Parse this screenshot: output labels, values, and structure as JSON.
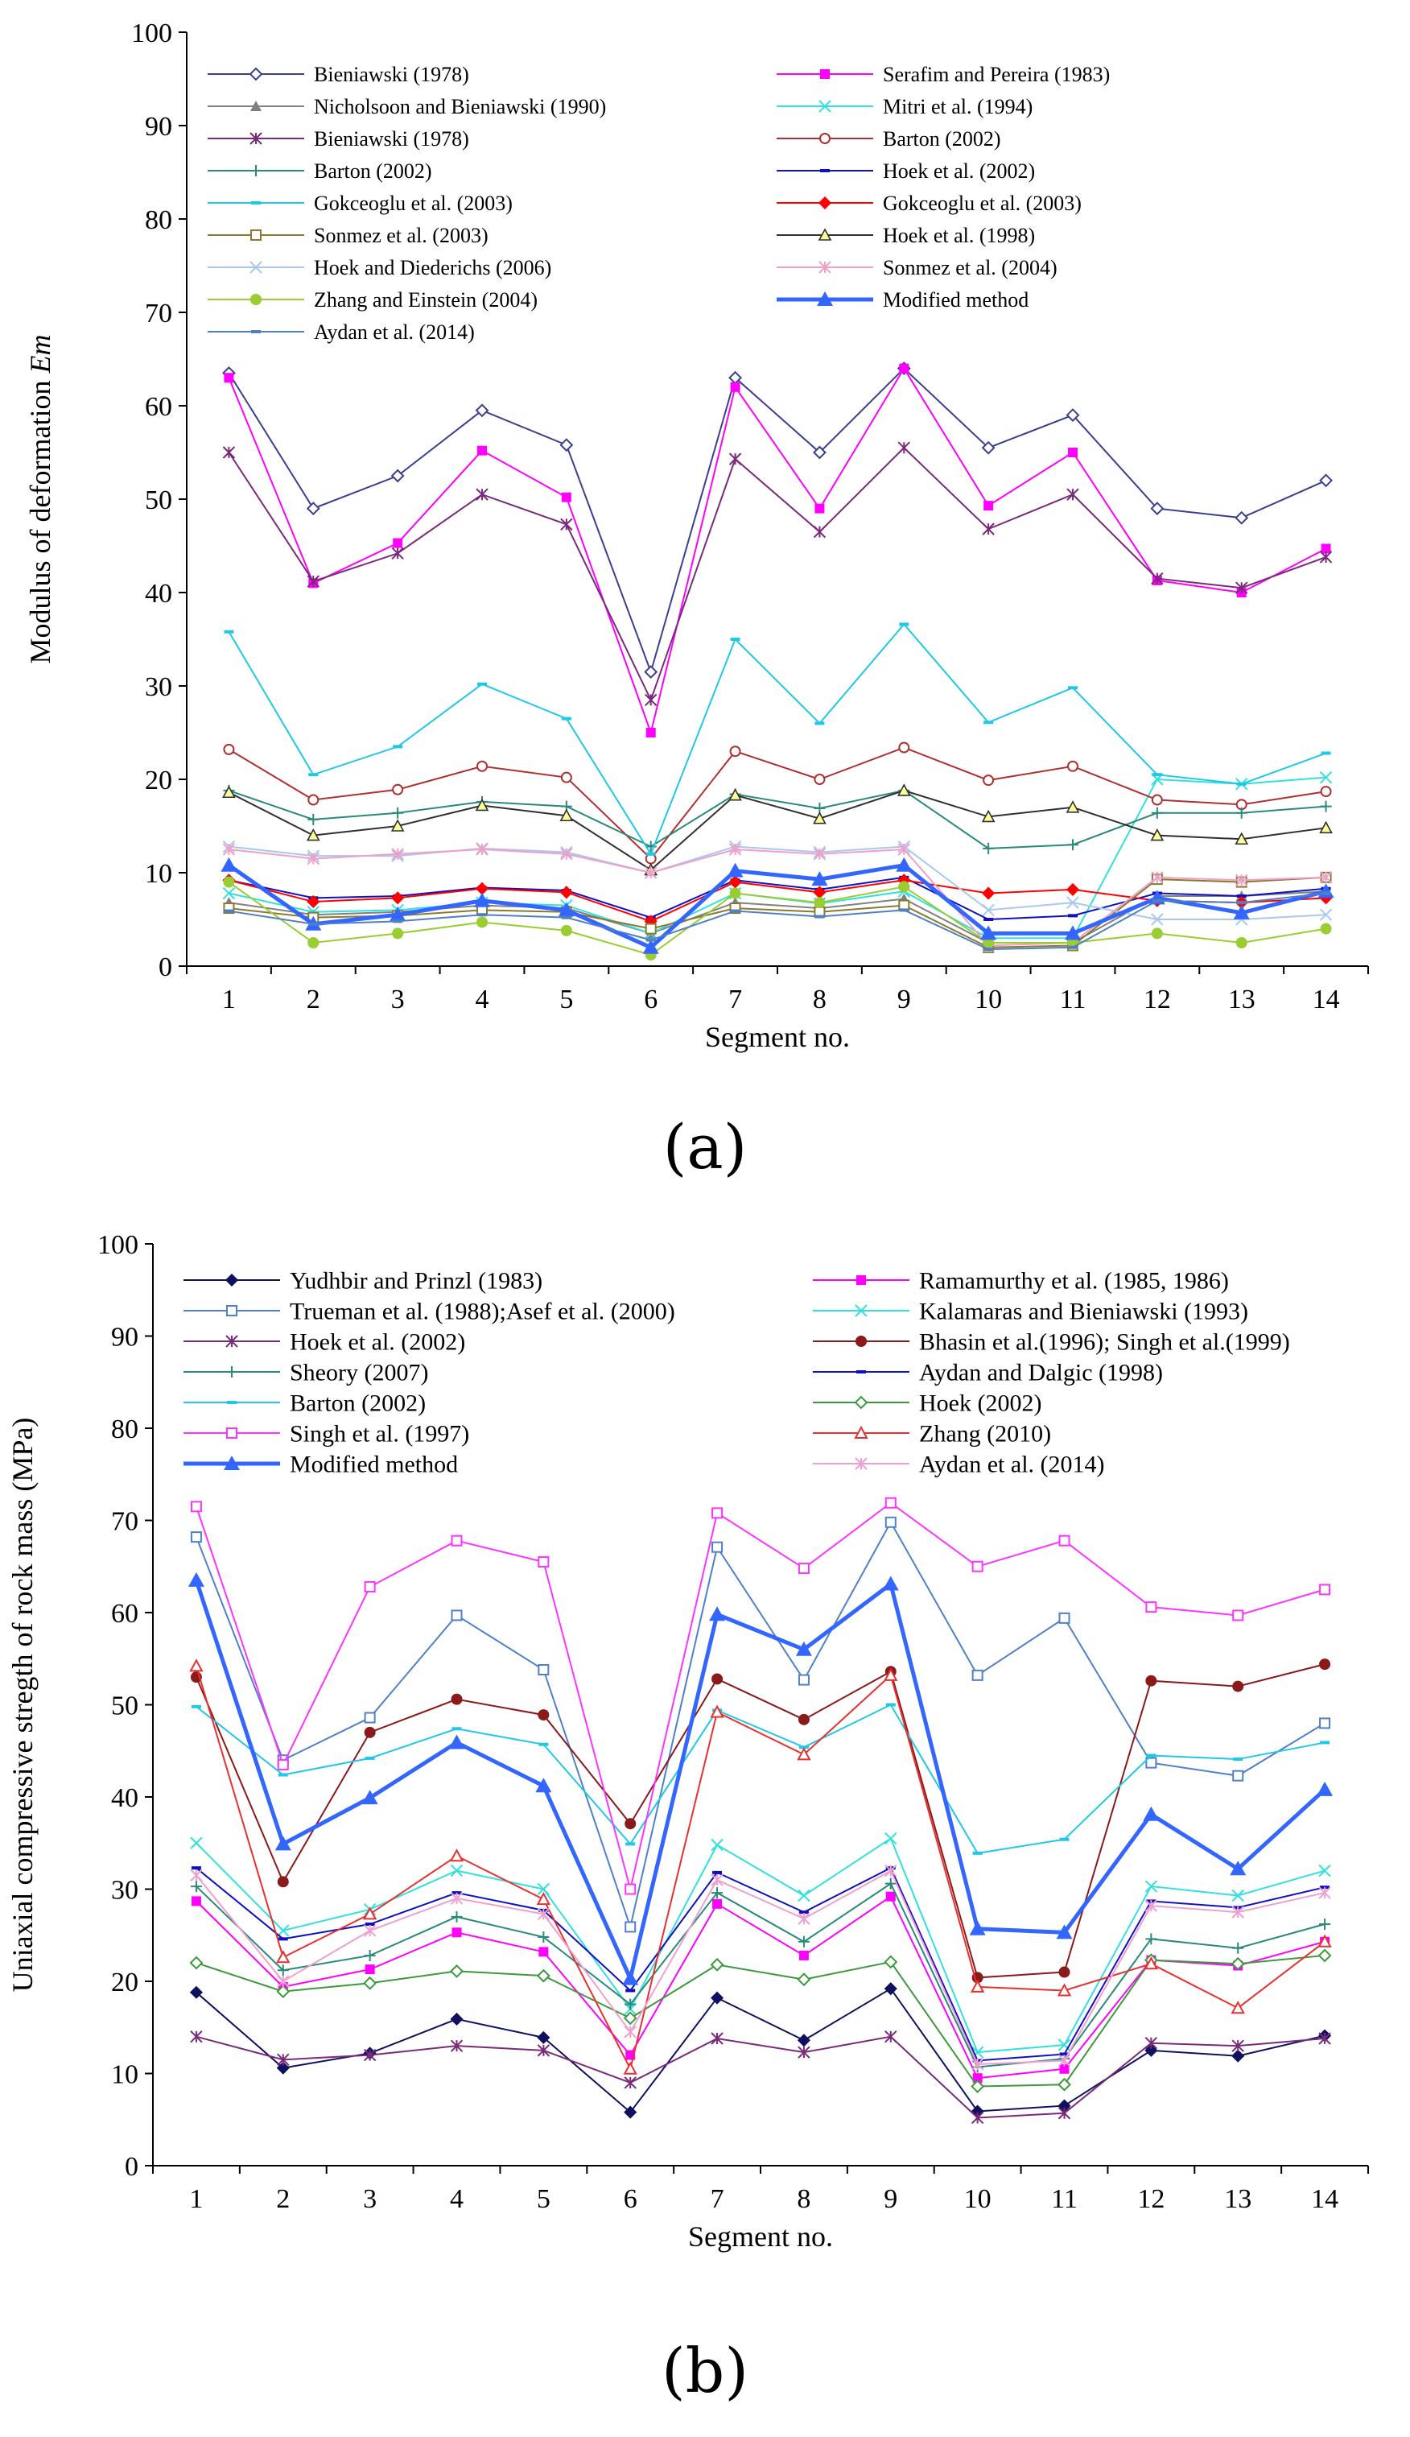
{
  "panel_labels": [
    "(a)",
    "(b)"
  ],
  "chart_data": [
    {
      "type": "line",
      "panel": "(a)",
      "xlabel": "Segment no.",
      "ylabel": "Modulus of deformation ",
      "ylabel_italic": "Em",
      "ylim": [
        0,
        100
      ],
      "yticks": [
        0,
        10,
        20,
        30,
        40,
        50,
        60,
        70,
        80,
        90,
        100
      ],
      "x": [
        1,
        2,
        3,
        4,
        5,
        6,
        7,
        8,
        9,
        10,
        11,
        12,
        13,
        14
      ],
      "series": [
        {
          "name": "Bieniawski (1978)",
          "color": "#3a3f8f",
          "marker": "diamond-open",
          "values": [
            63.5,
            49,
            52.5,
            59.5,
            55.8,
            31.5,
            63,
            55,
            64,
            55.5,
            59,
            49,
            48,
            52
          ]
        },
        {
          "name": "Serafim and Pereira (1983)",
          "color": "#ff00ff",
          "marker": "square-filled",
          "values": [
            63,
            41,
            45.3,
            55.2,
            50.2,
            25,
            62,
            49,
            64,
            49.3,
            55,
            41.3,
            40,
            44.7
          ]
        },
        {
          "name": "Nicholsoon and Bieniawski (1990)",
          "color": "#808080",
          "marker": "triangle-filled",
          "values": [
            6.8,
            5.5,
            5.8,
            6.5,
            6.2,
            3.5,
            6.8,
            6.2,
            7.2,
            2.5,
            2.5,
            7.5,
            7.5,
            8
          ]
        },
        {
          "name": "Mitri et al. (1994)",
          "color": "#33e0e0",
          "marker": "x",
          "values": [
            7.8,
            5.8,
            6,
            6.8,
            6.5,
            3.5,
            7.8,
            6.7,
            8,
            3,
            3,
            20,
            19.5,
            20.2
          ]
        },
        {
          "name": "Bieniawski (1978)",
          "color": "#7a2a7a",
          "marker": "asterisk",
          "values": [
            55,
            41.2,
            44.2,
            50.5,
            47.3,
            28.5,
            54.3,
            46.5,
            55.5,
            46.8,
            50.5,
            41.5,
            40.5,
            43.8
          ]
        },
        {
          "name": "Barton (2002)",
          "color": "#b03030",
          "marker": "circle-open",
          "values": [
            23.2,
            17.8,
            18.9,
            21.4,
            20.2,
            11.5,
            23,
            20,
            23.4,
            19.9,
            21.4,
            17.8,
            17.3,
            18.7
          ]
        },
        {
          "name": "Barton (2002)",
          "color": "#2a8a7a",
          "marker": "plus",
          "values": [
            18.8,
            15.7,
            16.4,
            17.6,
            17.1,
            12.8,
            18.4,
            16.9,
            18.8,
            12.6,
            13,
            16.4,
            16.4,
            17.1
          ]
        },
        {
          "name": "Hoek et al. (2002)",
          "color": "#1010c0",
          "marker": "dash",
          "values": [
            9.2,
            7.3,
            7.5,
            8.4,
            8.1,
            5.2,
            9.2,
            8.2,
            9.5,
            5,
            5.4,
            7.8,
            7.5,
            8.3
          ]
        },
        {
          "name": "Gokceoglu et al. (2003)",
          "color": "#20c8e8",
          "marker": "dash",
          "values": [
            35.8,
            20.5,
            23.5,
            30.2,
            26.5,
            12,
            35,
            26,
            36.6,
            26.1,
            29.8,
            20.5,
            19.5,
            22.8
          ]
        },
        {
          "name": "Gokceoglu et al. (2003)",
          "color": "#ff0000",
          "marker": "diamond-filled",
          "values": [
            9.2,
            6.9,
            7.3,
            8.3,
            7.9,
            4.8,
            9,
            7.9,
            9.2,
            7.8,
            8.2,
            7,
            6.8,
            7.3
          ]
        },
        {
          "name": "Sonmez et al. (2003)",
          "color": "#8a7a30",
          "marker": "square-open",
          "values": [
            6.2,
            5.2,
            5.4,
            6,
            5.8,
            4,
            6.2,
            5.8,
            6.5,
            2,
            2.2,
            9.3,
            9,
            9.5
          ]
        },
        {
          "name": "Hoek et al. (1998)",
          "color": "#303030",
          "marker": "triangle-yellow",
          "values": [
            18.6,
            14,
            15,
            17.2,
            16.1,
            10.3,
            18.3,
            15.8,
            18.8,
            16,
            17,
            14,
            13.6,
            14.8
          ]
        },
        {
          "name": "Hoek and Diederichs (2006)",
          "color": "#a8c8f0",
          "marker": "x",
          "values": [
            12.8,
            11.8,
            11.8,
            12.6,
            12.2,
            10,
            12.8,
            12.2,
            12.8,
            6,
            6.8,
            5,
            5,
            5.5
          ]
        },
        {
          "name": "Sonmez et al. (2004)",
          "color": "#f0a0c8",
          "marker": "asterisk",
          "values": [
            12.5,
            11.5,
            12,
            12.5,
            12,
            10,
            12.5,
            12,
            12.5,
            2.2,
            2.5,
            9.5,
            9.2,
            9.5
          ]
        },
        {
          "name": "Zhang and Einstein (2004)",
          "color": "#9acd32",
          "marker": "circle-filled",
          "values": [
            9,
            2.5,
            3.5,
            4.7,
            3.8,
            1.2,
            7.8,
            6.8,
            8.5,
            2.5,
            2.5,
            3.5,
            2.5,
            4
          ]
        },
        {
          "name": "Modified method",
          "color": "#3366ff",
          "marker": "triangle-blue",
          "values": [
            10.8,
            4.5,
            5.5,
            7,
            6,
            2,
            10.2,
            9.3,
            10.8,
            3.5,
            3.5,
            7.3,
            5.7,
            8
          ]
        },
        {
          "name": "Aydan et al. (2014)",
          "color": "#5080c0",
          "marker": "dash",
          "values": [
            5.9,
            4.5,
            4.8,
            5.5,
            5.2,
            2.8,
            5.9,
            5.3,
            6,
            1.8,
            2,
            7,
            6.8,
            7.8
          ]
        }
      ]
    },
    {
      "type": "line",
      "panel": "(b)",
      "xlabel": "Segment no.",
      "ylabel": "Uniaxial compressive stregth of rock mass (MPa)",
      "ylim": [
        0,
        100
      ],
      "yticks": [
        0,
        10,
        20,
        30,
        40,
        50,
        60,
        70,
        80,
        90,
        100
      ],
      "x": [
        1,
        2,
        3,
        4,
        5,
        6,
        7,
        8,
        9,
        10,
        11,
        12,
        13,
        14
      ],
      "series": [
        {
          "name": "Yudhbir and Prinzl (1983)",
          "color": "#101060",
          "marker": "diamond-filled",
          "values": [
            18.8,
            10.6,
            12.2,
            15.9,
            13.9,
            5.8,
            18.2,
            13.6,
            19.2,
            5.9,
            6.5,
            12.5,
            11.9,
            14.1
          ]
        },
        {
          "name": "Ramamurthy et al. (1985, 1986)",
          "color": "#ff00ff",
          "marker": "square-filled",
          "values": [
            28.7,
            19.4,
            21.3,
            25.3,
            23.2,
            12,
            28.4,
            22.8,
            29.2,
            9.5,
            10.5,
            22.3,
            21.7,
            24.3
          ]
        },
        {
          "name": "Trueman et al. (1988);Asef et al. (2000)",
          "color": "#5080c8",
          "marker": "square-open",
          "values": [
            68.2,
            44,
            48.6,
            59.7,
            53.8,
            25.9,
            67.1,
            52.7,
            69.8,
            53.2,
            59.4,
            43.7,
            42.3,
            48
          ]
        },
        {
          "name": "Kalamaras and Bieniawski (1993)",
          "color": "#33e0e0",
          "marker": "x",
          "values": [
            35,
            25.5,
            27.8,
            32,
            30,
            17,
            34.8,
            29.3,
            35.5,
            12.3,
            13.1,
            30.3,
            29.3,
            32
          ]
        },
        {
          "name": "Hoek et al. (2002)",
          "color": "#7a2a7a",
          "marker": "asterisk",
          "values": [
            14,
            11.5,
            12,
            13,
            12.5,
            9,
            13.8,
            12.3,
            14,
            5.2,
            5.7,
            13.3,
            13,
            13.8
          ]
        },
        {
          "name": "Bhasin et al.(1996); Singh et al.(1999)",
          "color": "#8b1a1a",
          "marker": "circle-filled",
          "values": [
            53,
            30.8,
            47,
            50.6,
            48.9,
            37.1,
            52.8,
            48.4,
            53.6,
            20.4,
            21,
            52.6,
            52,
            54.4
          ]
        },
        {
          "name": "Sheory (2007)",
          "color": "#2a8a7a",
          "marker": "plus",
          "values": [
            30.3,
            21.2,
            22.8,
            27,
            24.8,
            17.5,
            29.6,
            24.3,
            30.6,
            10.7,
            11.6,
            24.6,
            23.6,
            26.2
          ]
        },
        {
          "name": "Aydan and Dalgic (1998)",
          "color": "#1010c0",
          "marker": "dash",
          "values": [
            32.3,
            24.6,
            26.2,
            29.6,
            27.7,
            19,
            31.8,
            27.5,
            32.3,
            11.4,
            12.1,
            28.7,
            28,
            30.2
          ]
        },
        {
          "name": "Barton (2002)",
          "color": "#20c8e8",
          "marker": "dash",
          "values": [
            49.8,
            42.4,
            44.2,
            47.4,
            45.7,
            34.9,
            49.4,
            45.4,
            50,
            33.9,
            35.4,
            44.5,
            44.1,
            45.9
          ]
        },
        {
          "name": "Hoek (2002)",
          "color": "#3c9a3c",
          "marker": "diamond-open",
          "values": [
            22,
            18.9,
            19.8,
            21.1,
            20.6,
            16,
            21.8,
            20.2,
            22.1,
            8.6,
            8.8,
            22.3,
            21.9,
            22.8
          ]
        },
        {
          "name": "Singh et al. (1997)",
          "color": "#ff33ff",
          "marker": "square-open",
          "values": [
            71.5,
            43.5,
            62.8,
            67.8,
            65.5,
            30,
            70.8,
            64.8,
            71.9,
            65,
            67.8,
            60.6,
            59.7,
            62.5
          ]
        },
        {
          "name": "Zhang (2010)",
          "color": "#e83030",
          "marker": "triangle-open",
          "values": [
            54.2,
            22.6,
            27.3,
            33.6,
            28.9,
            10.5,
            49.2,
            44.6,
            53.2,
            19.4,
            19,
            21.9,
            17.1,
            24.3
          ]
        },
        {
          "name": "Modified method",
          "color": "#3366ff",
          "marker": "triangle-blue",
          "values": [
            63.5,
            34.9,
            39.9,
            45.9,
            41.2,
            20.3,
            59.8,
            56,
            63.1,
            25.7,
            25.3,
            38.1,
            32.2,
            40.8
          ]
        },
        {
          "name": "Aydan et al. (2014)",
          "color": "#f0a0d0",
          "marker": "asterisk",
          "values": [
            31.5,
            20,
            25.5,
            29,
            27.3,
            14.5,
            31,
            26.8,
            32,
            11,
            11.4,
            28.2,
            27.5,
            29.6
          ]
        }
      ]
    }
  ]
}
